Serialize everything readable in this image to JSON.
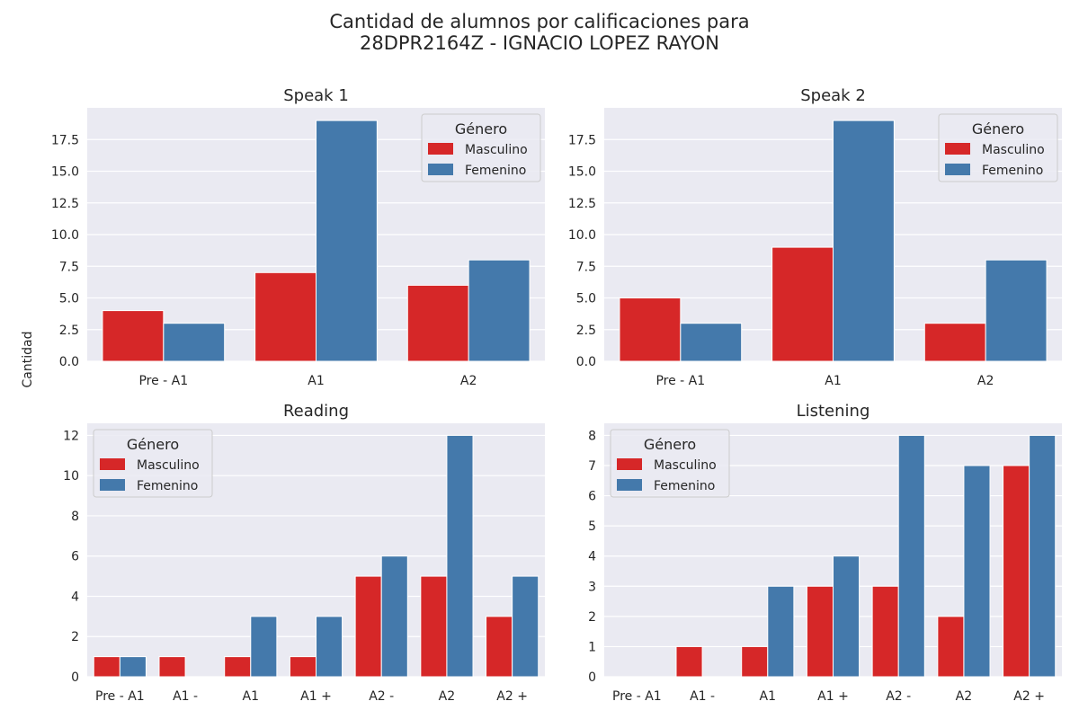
{
  "figure": {
    "title_line1": "Cantidad de alumnos por calificaciones para",
    "title_line2": "28DPR2164Z - IGNACIO LOPEZ RAYON",
    "ylabel": "Cantidad",
    "legend_title": "Género",
    "colors": {
      "Masculino": "#d62728",
      "Femenino": "#4479ab",
      "axes_bg": "#eaeaf2",
      "grid": "#ffffff"
    }
  },
  "chart_data": [
    {
      "type": "bar",
      "title": "Speak 1",
      "categories": [
        "Pre - A1",
        "A1",
        "A2"
      ],
      "series": [
        {
          "name": "Masculino",
          "values": [
            4,
            7,
            6
          ]
        },
        {
          "name": "Femenino",
          "values": [
            3,
            19,
            8
          ]
        }
      ],
      "ylim": [
        0,
        20
      ],
      "yticks": [
        0,
        2.5,
        5,
        7.5,
        10,
        12.5,
        15,
        17.5
      ],
      "ytick_labels": [
        "0.0",
        "2.5",
        "5.0",
        "7.5",
        "10.0",
        "12.5",
        "15.0",
        "17.5"
      ],
      "legend_title": "Género",
      "legend_loc": "upper right",
      "grid": true
    },
    {
      "type": "bar",
      "title": "Speak 2",
      "categories": [
        "Pre - A1",
        "A1",
        "A2"
      ],
      "series": [
        {
          "name": "Masculino",
          "values": [
            5,
            9,
            3
          ]
        },
        {
          "name": "Femenino",
          "values": [
            3,
            19,
            8
          ]
        }
      ],
      "ylim": [
        0,
        20
      ],
      "yticks": [
        0,
        2.5,
        5,
        7.5,
        10,
        12.5,
        15,
        17.5
      ],
      "ytick_labels": [
        "0.0",
        "2.5",
        "5.0",
        "7.5",
        "10.0",
        "12.5",
        "15.0",
        "17.5"
      ],
      "legend_title": "Género",
      "legend_loc": "upper right",
      "grid": true
    },
    {
      "type": "bar",
      "title": "Reading",
      "categories": [
        "Pre - A1",
        "A1 -",
        "A1",
        "A1 +",
        "A2 -",
        "A2",
        "A2 +"
      ],
      "series": [
        {
          "name": "Masculino",
          "values": [
            1,
            1,
            1,
            1,
            5,
            5,
            3
          ]
        },
        {
          "name": "Femenino",
          "values": [
            1,
            0,
            3,
            3,
            6,
            12,
            5
          ]
        }
      ],
      "ylim": [
        0,
        12.6
      ],
      "yticks": [
        0,
        2,
        4,
        6,
        8,
        10,
        12
      ],
      "ytick_labels": [
        "0",
        "2",
        "4",
        "6",
        "8",
        "10",
        "12"
      ],
      "legend_title": "Género",
      "legend_loc": "upper left",
      "grid": true
    },
    {
      "type": "bar",
      "title": "Listening",
      "categories": [
        "Pre - A1",
        "A1 -",
        "A1",
        "A1 +",
        "A2 -",
        "A2",
        "A2 +"
      ],
      "series": [
        {
          "name": "Masculino",
          "values": [
            0,
            1,
            1,
            3,
            3,
            2,
            7
          ]
        },
        {
          "name": "Femenino",
          "values": [
            0,
            0,
            3,
            4,
            8,
            7,
            8
          ]
        }
      ],
      "ylim": [
        0,
        8.4
      ],
      "yticks": [
        0,
        1,
        2,
        3,
        4,
        5,
        6,
        7,
        8
      ],
      "ytick_labels": [
        "0",
        "1",
        "2",
        "3",
        "4",
        "5",
        "6",
        "7",
        "8"
      ],
      "legend_title": "Género",
      "legend_loc": "upper left",
      "grid": true
    }
  ]
}
